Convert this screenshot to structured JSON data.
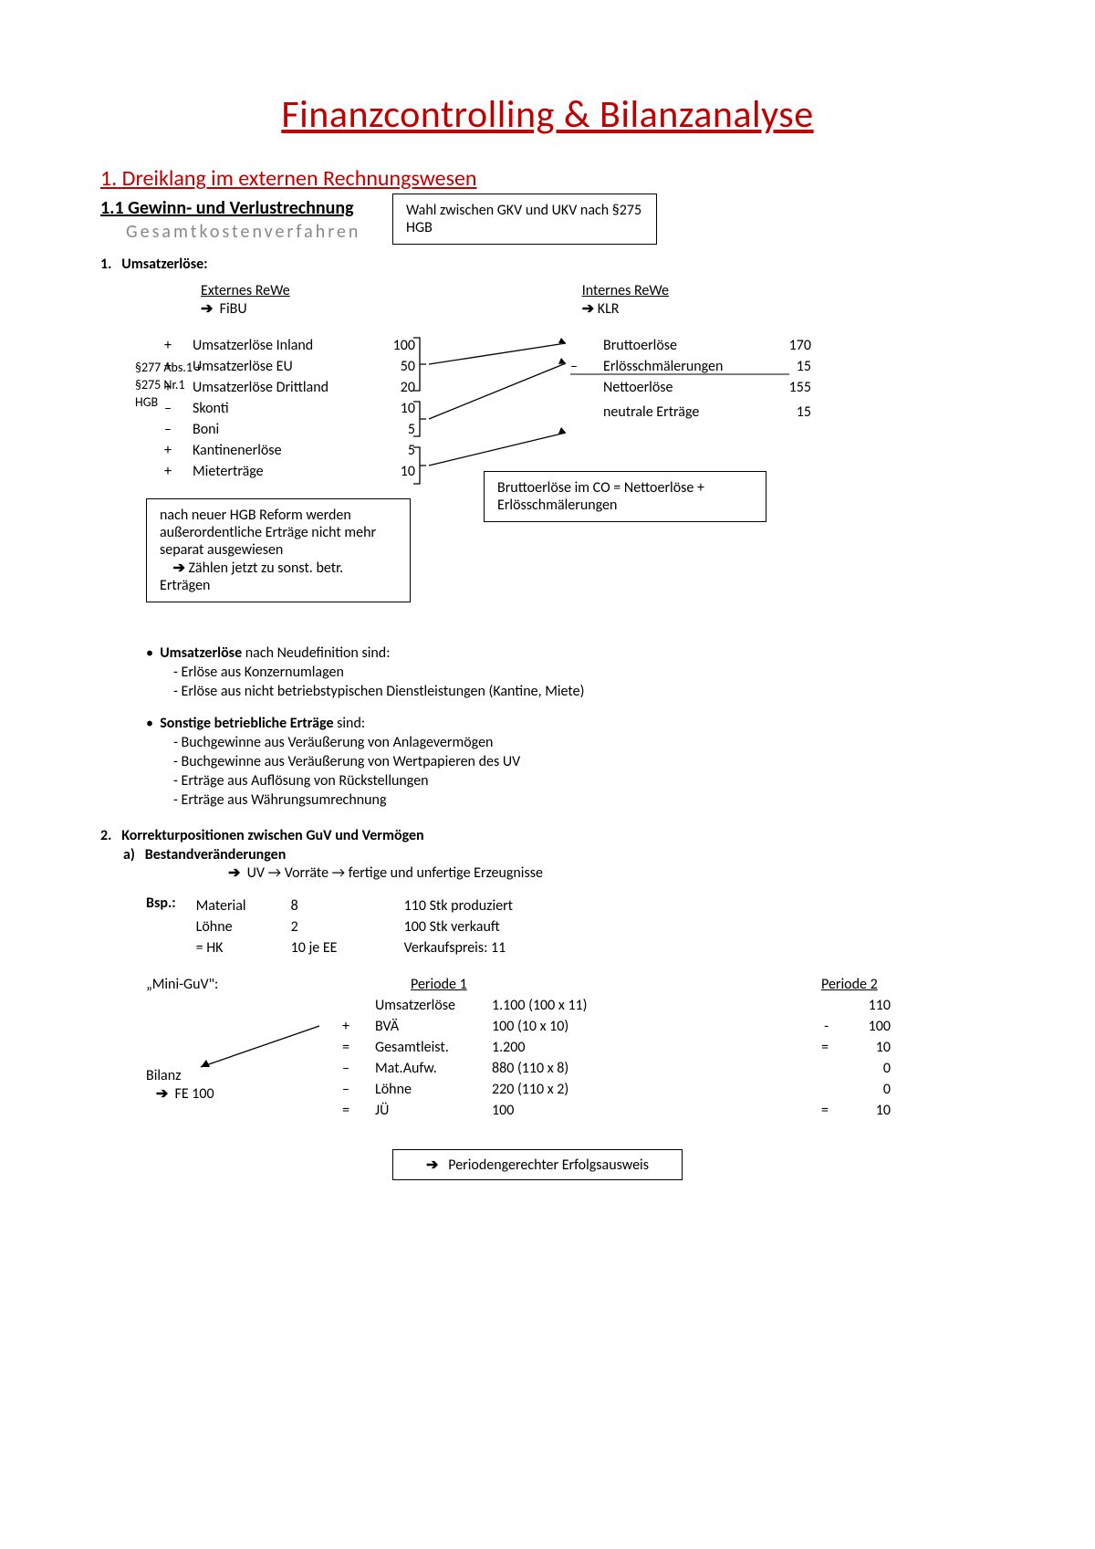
{
  "title": "Finanzcontrolling & Bilanzanalyse",
  "section1": {
    "num": "1.",
    "title": "Dreiklang im externen Rechnungswesen"
  },
  "section11": {
    "num": "1.1",
    "title": "Gewinn- und Verlustrechnung"
  },
  "subgray": "Gesamtkostenverfahren",
  "boxGKV": "Wahl zwischen GKV und UKV nach §275 HGB",
  "n1": {
    "num": "1.",
    "title": "Umsatzerlöse:"
  },
  "cols": {
    "ext": {
      "head": "Externes ReWe",
      "sub": "FiBU"
    },
    "int": {
      "head": "Internes ReWe",
      "sub": "KLR"
    }
  },
  "legal": "§277 Abs.1 + §275 Nr.1 HGB",
  "ext": [
    {
      "s": "+",
      "l": "Umsatzerlöse Inland",
      "v": "100"
    },
    {
      "s": "+",
      "l": "Umsatzerlöse EU",
      "v": "50"
    },
    {
      "s": "+",
      "l": "Umsatzerlöse Drittland",
      "v": "20"
    },
    {
      "s": "–",
      "l": "Skonti",
      "v": "10"
    },
    {
      "s": "–",
      "l": "Boni",
      "v": "5"
    },
    {
      "s": "+",
      "l": "Kantinenerlöse",
      "v": "5"
    },
    {
      "s": "+",
      "l": "Mieterträge",
      "v": "10"
    }
  ],
  "int": [
    {
      "s": "",
      "l": "Bruttoerlöse",
      "v": "170"
    },
    {
      "s": "–",
      "l": "Erlösschmälerungen",
      "v": "15"
    },
    {
      "s": "",
      "l": "Nettoerlöse",
      "v": "155"
    },
    {
      "s": "",
      "l": "",
      "v": ""
    },
    {
      "s": "",
      "l": "neutrale Erträge",
      "v": "15"
    }
  ],
  "boxBrutto": "Bruttoerlöse im CO = Nettoerlöse + Erlösschmälerungen",
  "boxHGB": {
    "l1": "nach neuer HGB Reform werden außerordentliche Erträge nicht mehr separat ausgewiesen",
    "l2": "Zählen jetzt zu sonst. betr. Erträgen"
  },
  "b1": {
    "head": "Umsatzerlöse",
    "tail": " nach Neudefinition sind:",
    "items": [
      "Erlöse aus Konzernumlagen",
      "Erlöse aus nicht betriebstypischen Dienstleistungen (Kantine, Miete)"
    ]
  },
  "b2": {
    "head": "Sonstige betriebliche Erträge",
    "tail": " sind:",
    "items": [
      "Buchgewinne aus Veräußerung von Anlagevermögen",
      "Buchgewinne aus Veräußerung von Wertpapieren des UV",
      "Erträge aus Auflösung von Rückstellungen",
      "Erträge aus Währungsumrechnung"
    ]
  },
  "n2": {
    "num": "2.",
    "title": "Korrekturpositionen zwischen GuV und Vermögen"
  },
  "n2a": {
    "num": "a)",
    "title": "Bestandveränderungen"
  },
  "n2arrow": "UV → Vorräte → fertige und unfertige Erzeugnisse",
  "bsp": {
    "label": "Bsp.:",
    "rows": [
      [
        "Material",
        "8",
        "110 Stk produziert"
      ],
      [
        "Löhne",
        "2",
        "100 Stk verkauft"
      ],
      [
        "= HK",
        "10 je EE",
        "Verkaufspreis: 11"
      ]
    ]
  },
  "miniguv": {
    "label": "„Mini-GuV\":",
    "p1head": "Periode 1",
    "p2head": "Periode 2",
    "rows": [
      {
        "s": "",
        "n": "Umsatzerlöse",
        "v": "1.100 (100 x 11)",
        "p2s": "",
        "p2": "110"
      },
      {
        "s": "+",
        "n": "BVÄ",
        "v": "   100 (10 x 10)",
        "p2s": "-",
        "p2": "100"
      },
      {
        "s": "=",
        "n": "Gesamtleist.",
        "v": "1.200",
        "p2s": "=",
        "p2": "10"
      },
      {
        "s": "–",
        "n": "Mat.Aufw.",
        "v": "   880 (110 x 8)",
        "p2s": "",
        "p2": "0"
      },
      {
        "s": "–",
        "n": "Löhne",
        "v": "   220 (110 x 2)",
        "p2s": "",
        "p2": "0"
      },
      {
        "s": "=",
        "n": "JÜ",
        "v": "   100",
        "p2s": "=",
        "p2": "10"
      }
    ],
    "bilanz": "Bilanz",
    "fe": "FE 100"
  },
  "finalbox": "Periodengerechter Erfolgsausweis",
  "colors": {
    "red": "#c00000",
    "gray": "#888888"
  }
}
